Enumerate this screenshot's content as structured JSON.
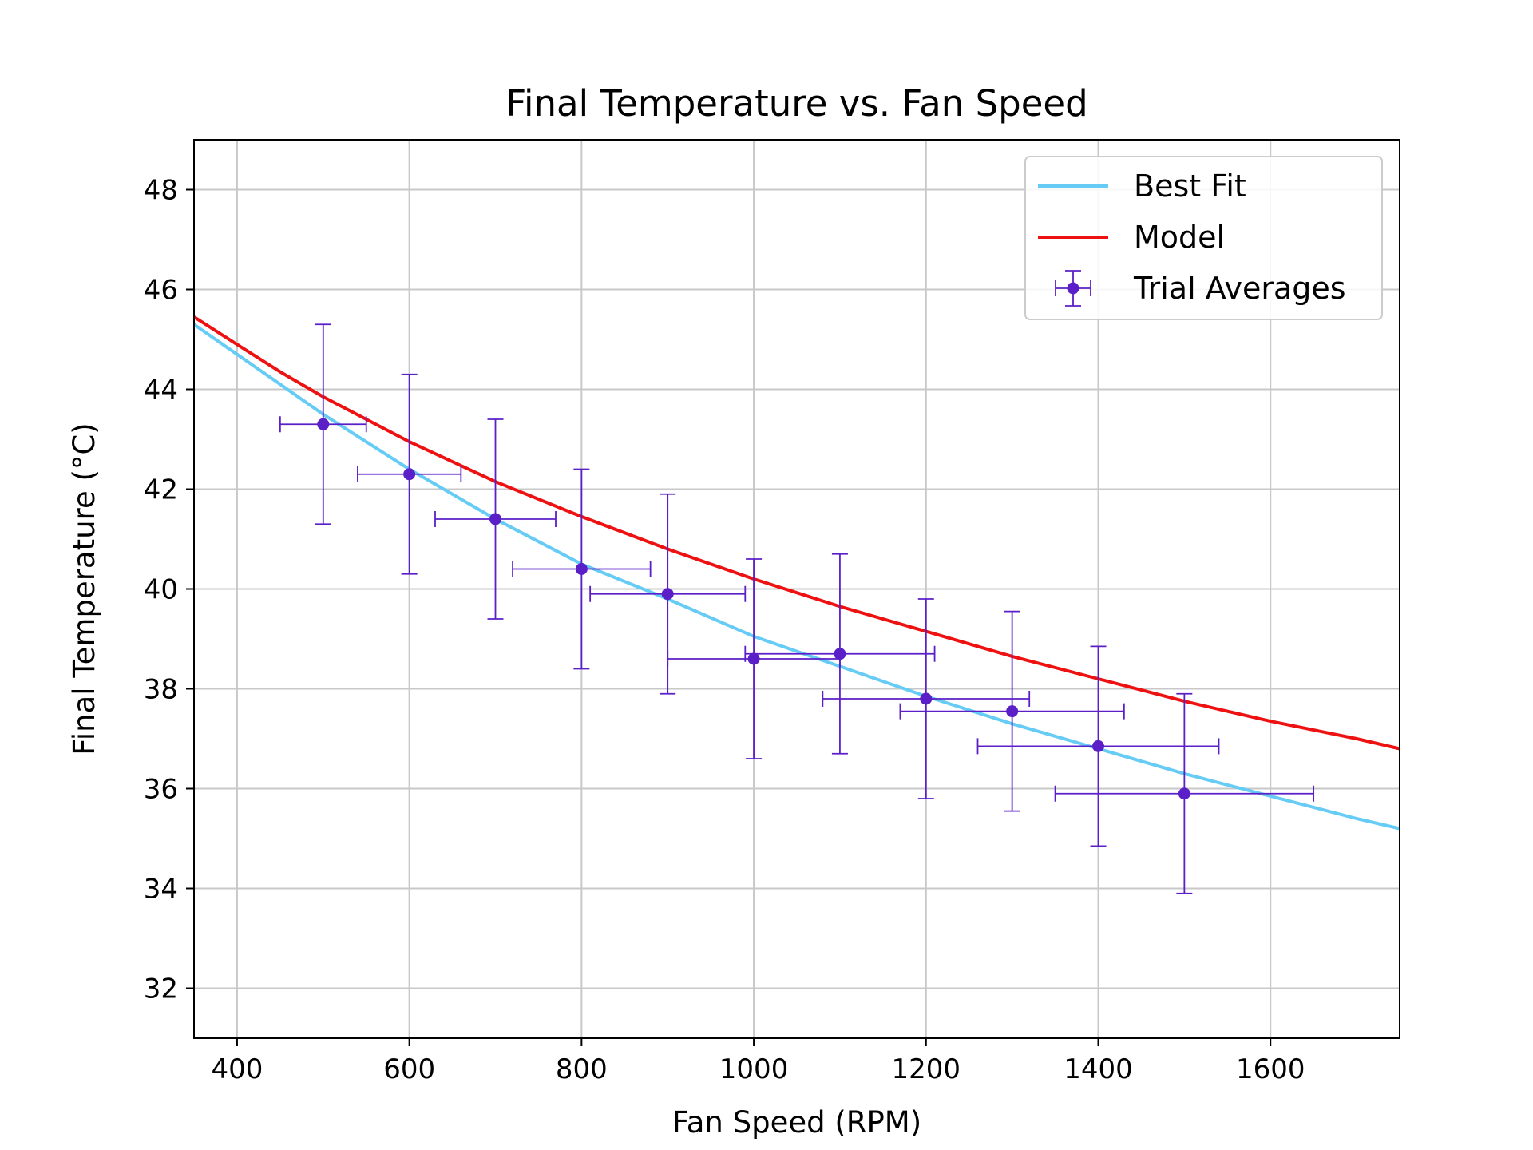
{
  "chart_data": {
    "type": "scatter",
    "title": "Final Temperature vs. Fan Speed",
    "xlabel": "Fan Speed (RPM)",
    "ylabel": "Final Temperature (°C)",
    "xlim": [
      350,
      1750
    ],
    "ylim": [
      31,
      49
    ],
    "xticks": [
      400,
      600,
      800,
      1000,
      1200,
      1400,
      1600
    ],
    "yticks": [
      32,
      34,
      36,
      38,
      40,
      42,
      44,
      46,
      48
    ],
    "grid": true,
    "legend_position": "top-right",
    "series": [
      {
        "name": "Best Fit",
        "kind": "line",
        "color": "#66ccf5",
        "x": [
          350,
          400,
          450,
          500,
          600,
          700,
          800,
          900,
          1000,
          1100,
          1200,
          1300,
          1400,
          1500,
          1600,
          1700,
          1750
        ],
        "y": [
          45.3,
          44.7,
          44.1,
          43.5,
          42.4,
          41.4,
          40.5,
          39.8,
          39.05,
          38.45,
          37.85,
          37.3,
          36.8,
          36.3,
          35.85,
          35.4,
          35.2
        ]
      },
      {
        "name": "Model",
        "kind": "line",
        "color": "#ee1111",
        "x": [
          350,
          400,
          450,
          500,
          600,
          700,
          800,
          900,
          1000,
          1100,
          1200,
          1300,
          1400,
          1500,
          1600,
          1700,
          1750
        ],
        "y": [
          45.45,
          44.9,
          44.35,
          43.85,
          42.95,
          42.15,
          41.45,
          40.8,
          40.2,
          39.65,
          39.15,
          38.65,
          38.2,
          37.75,
          37.35,
          37.0,
          36.8
        ]
      },
      {
        "name": "Trial Averages",
        "kind": "errorbar",
        "color": "#5b1fc8",
        "x": [
          500,
          600,
          700,
          800,
          900,
          1000,
          1100,
          1200,
          1300,
          1400,
          1500
        ],
        "y": [
          43.3,
          42.3,
          41.4,
          40.4,
          39.9,
          38.6,
          38.7,
          37.8,
          37.55,
          36.85,
          35.9
        ],
        "xerr": [
          50,
          60,
          70,
          80,
          90,
          100,
          110,
          120,
          130,
          140,
          150
        ],
        "yerr": [
          2,
          2,
          2,
          2,
          2,
          2,
          2,
          2,
          2,
          2,
          2
        ]
      }
    ]
  }
}
